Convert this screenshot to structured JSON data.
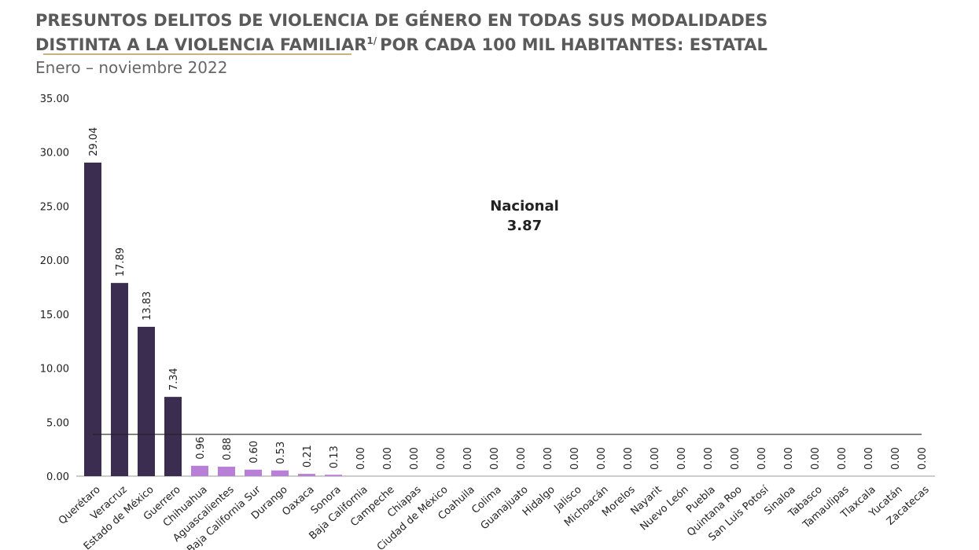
{
  "chart_data": {
    "type": "bar",
    "title": [
      "PRESUNTOS DELITOS DE VIOLENCIA DE GÉNERO EN TODAS SUS MODALIDADES",
      "DISTINTA A LA VIOLENCIA FAMILIAR",
      "1/",
      "POR CADA 100 MIL HABITANTES: ESTATAL"
    ],
    "subtitle": "Enero – noviembre 2022",
    "categories": [
      "Querétaro",
      "Veracruz",
      "Estado de México",
      "Guerrero",
      "Chihuahua",
      "Aguascalientes",
      "Baja California Sur",
      "Durango",
      "Oaxaca",
      "Sonora",
      "Baja California",
      "Campeche",
      "Chiapas",
      "Ciudad de México",
      "Coahuila",
      "Colima",
      "Guanajuato",
      "Hidalgo",
      "Jalisco",
      "Michoacán",
      "Morelos",
      "Nayarit",
      "Nuevo León",
      "Puebla",
      "Quintana Roo",
      "San Luis Potosí",
      "Sinaloa",
      "Tabasco",
      "Tamaulipas",
      "Tlaxcala",
      "Yucatán",
      "Zacatecas"
    ],
    "values": [
      29.04,
      17.89,
      13.83,
      7.34,
      0.96,
      0.88,
      0.6,
      0.53,
      0.21,
      0.13,
      0,
      0,
      0,
      0,
      0,
      0,
      0,
      0,
      0,
      0,
      0,
      0,
      0,
      0,
      0,
      0,
      0,
      0,
      0,
      0,
      0,
      0
    ],
    "value_labels": [
      "29.04",
      "17.89",
      "13.83",
      "7.34",
      "0.96",
      "0.88",
      "0.60",
      "0.53",
      "0.21",
      "0.13",
      "0.00",
      "0.00",
      "0.00",
      "0.00",
      "0.00",
      "0.00",
      "0.00",
      "0.00",
      "0.00",
      "0.00",
      "0.00",
      "0.00",
      "0.00",
      "0.00",
      "0.00",
      "0.00",
      "0.00",
      "0.00",
      "0.00",
      "0.00",
      "0.00",
      "0.00"
    ],
    "colors": [
      "#3b2d4f",
      "#3b2d4f",
      "#3b2d4f",
      "#3b2d4f",
      "#b77fd6",
      "#b77fd6",
      "#b77fd6",
      "#b77fd6",
      "#b77fd6",
      "#b77fd6",
      "#b77fd6",
      "#b77fd6",
      "#b77fd6",
      "#b77fd6",
      "#b77fd6",
      "#b77fd6",
      "#b77fd6",
      "#b77fd6",
      "#b77fd6",
      "#b77fd6",
      "#b77fd6",
      "#b77fd6",
      "#b77fd6",
      "#b77fd6",
      "#b77fd6",
      "#b77fd6",
      "#b77fd6",
      "#b77fd6",
      "#b77fd6",
      "#b77fd6",
      "#b77fd6",
      "#b77fd6"
    ],
    "ylim": [
      0,
      35
    ],
    "yticks": [
      {
        "value": 0,
        "label": "0.00"
      },
      {
        "value": 5,
        "label": "5.00"
      },
      {
        "value": 10,
        "label": "10.00"
      },
      {
        "value": 15,
        "label": "15.00"
      },
      {
        "value": 20,
        "label": "20.00"
      },
      {
        "value": 25,
        "label": "25.00"
      },
      {
        "value": 30,
        "label": "30.00"
      },
      {
        "value": 35,
        "label": "35.00"
      }
    ],
    "reference": {
      "label": "Nacional",
      "value": 3.87
    }
  }
}
